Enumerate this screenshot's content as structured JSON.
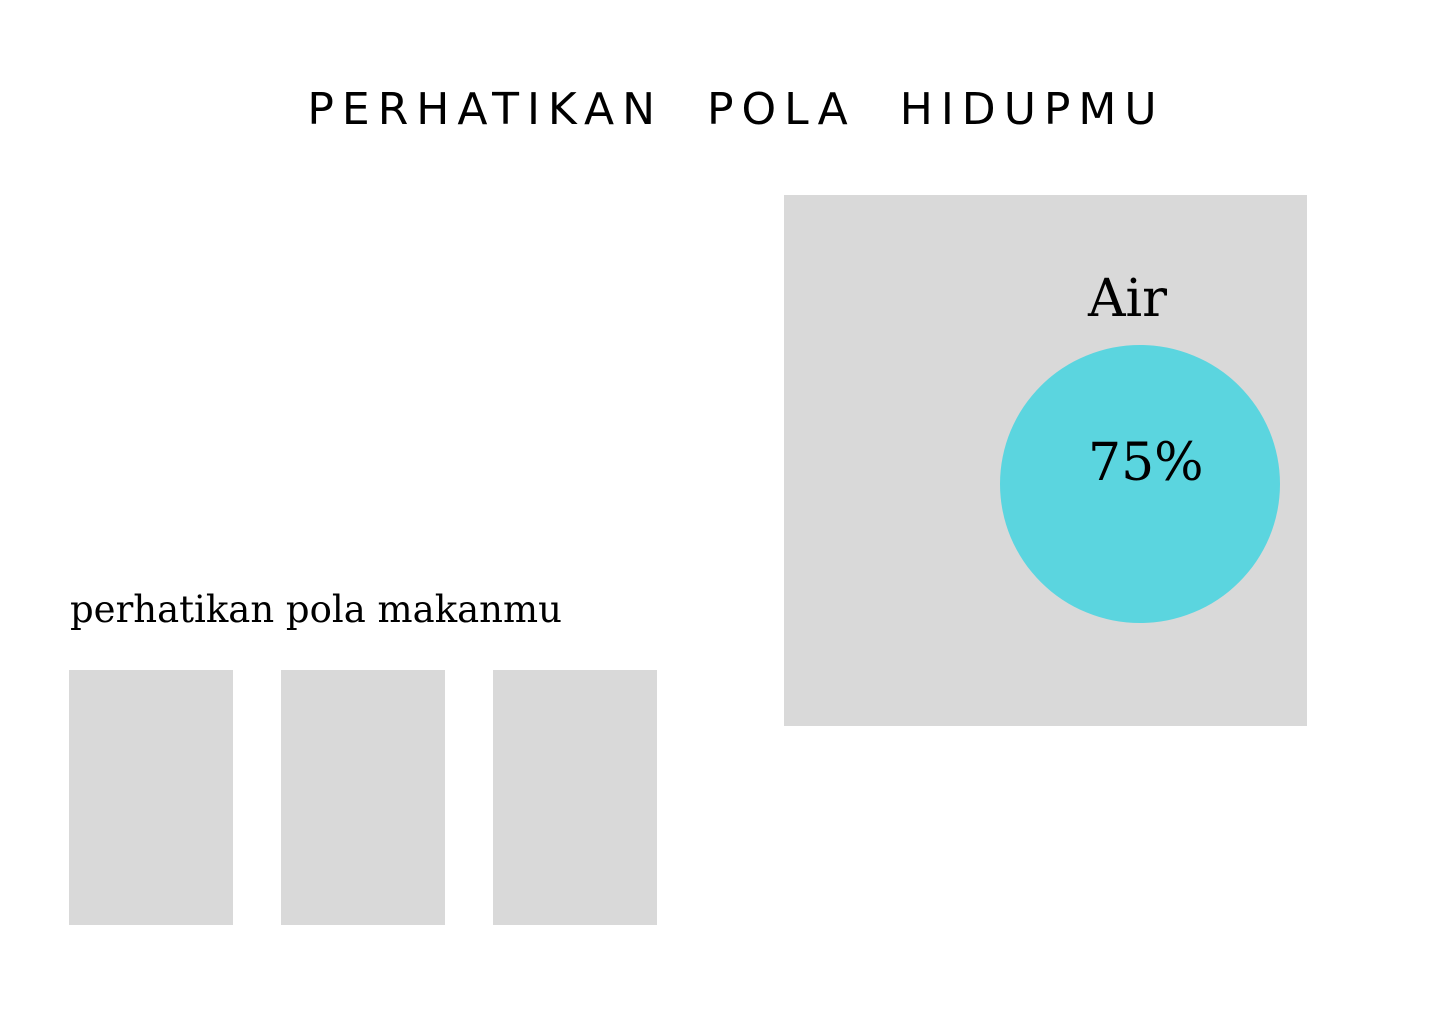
{
  "header": {
    "title": "PERHATIKAN  POLA  HIDUPMU"
  },
  "food_section": {
    "heading": "perhatikan pola makanmu",
    "cards": [
      {
        "placeholder": true
      },
      {
        "placeholder": true
      },
      {
        "placeholder": true
      }
    ]
  },
  "water_section": {
    "label": "Air",
    "value_text": "75%",
    "value": 75
  },
  "colors": {
    "background": "#ffffff",
    "card": "#d9d9d9",
    "water_circle": "#5bd5df",
    "text": "#000000"
  }
}
